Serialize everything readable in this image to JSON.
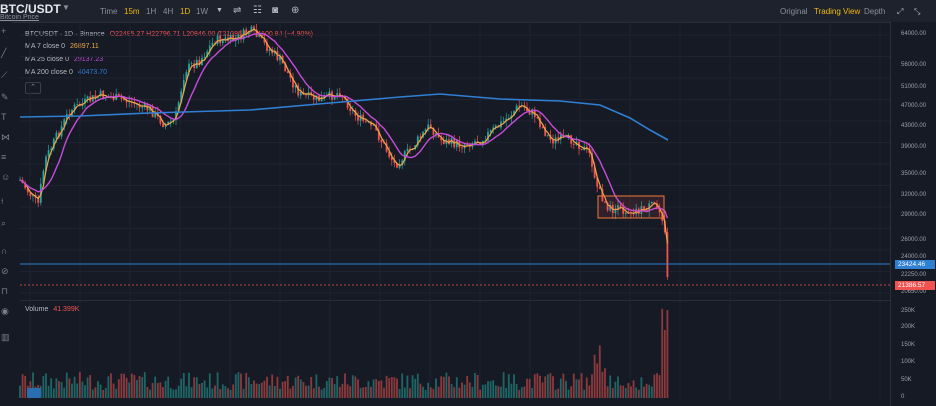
{
  "header": {
    "symbol": "BTC/USDT",
    "subtitle": "Bitcoin Price",
    "timeframes": [
      "Time",
      "15m",
      "1H",
      "4H",
      "1D",
      "1W"
    ],
    "timeframe_active": [
      "15m",
      "1D"
    ],
    "views": [
      "Original",
      "Trading View",
      "Depth"
    ],
    "view_active": "Trading View"
  },
  "legend": {
    "title": "BTCUSDT · 1D · Binance",
    "ohlc": "O22485.27  H22796.71  L20846.00  C21386.57  −1100.84 (−4.90%)",
    "ma7_label": "MA 7 close 0",
    "ma7_value": "26897.11",
    "ma25_label": "MA 25 close 0",
    "ma25_value": "29137.23",
    "ma200_label": "MA 200 close 0",
    "ma200_value": "40473.70"
  },
  "volume": {
    "label": "Volume",
    "value": "41.399K"
  },
  "price_axis": [
    "64000.00",
    "56000.00",
    "51000.00",
    "47000.00",
    "43000.00",
    "39000.00",
    "35000.00",
    "32000.00",
    "29000.00",
    "26000.00",
    "24000.00",
    "22250.00",
    "20650.00"
  ],
  "volume_axis": [
    "250K",
    "200K",
    "150K",
    "100K",
    "50K",
    "0"
  ],
  "price_tags": {
    "blue": "23424.46",
    "red": "21386.57"
  },
  "colors": {
    "up": "#26a69a",
    "down": "#ef5350",
    "ma7": "#f0a64a",
    "ma25": "#c54cd9",
    "ma200": "#2f7fd3",
    "accent": "#f0b90b"
  },
  "chart_data": {
    "type": "candlestick",
    "ylim": [
      20650,
      64000
    ],
    "ma200_value": 40473.7,
    "ma25_value": 29137.23,
    "ma7_value": 26897.11,
    "last_close": 21386.57
  }
}
